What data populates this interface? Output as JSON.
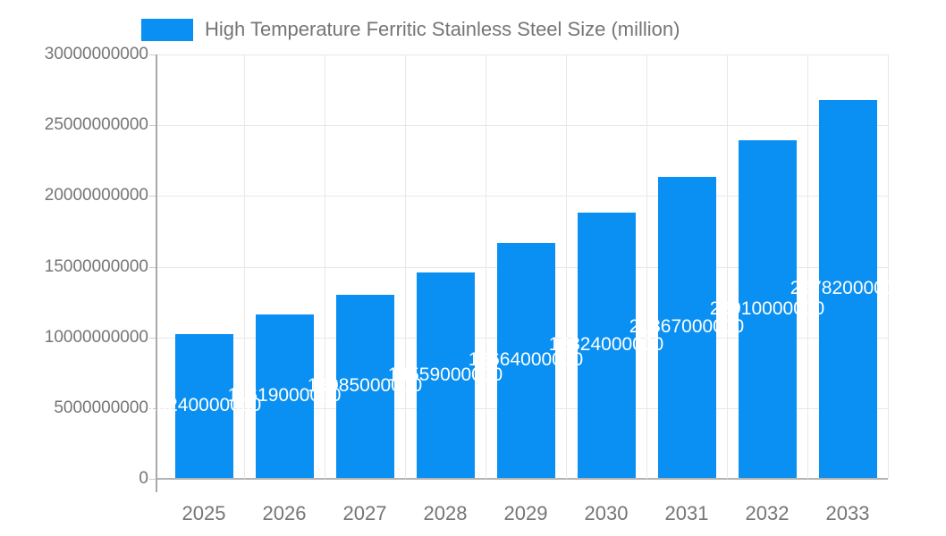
{
  "chart_data": {
    "type": "bar",
    "legend_label": "High Temperature Ferritic Stainless Steel Size (million)",
    "legend_position": "top",
    "categories": [
      "2025",
      "2026",
      "2027",
      "2028",
      "2029",
      "2030",
      "2031",
      "2032",
      "2033"
    ],
    "values": [
      10240000000,
      11619000000,
      12985000000,
      14559000000,
      16664000000,
      18824000000,
      21367000000,
      23910000000,
      26782000000
    ],
    "bar_value_labels": [
      "10240000000",
      "11619000000",
      "12985000000",
      "14559000000",
      "16664000000",
      "18824000000",
      "21367000000",
      "23910000000",
      "26782000000"
    ],
    "xlabel": "",
    "ylabel": "",
    "ylim": [
      0,
      30000000000
    ],
    "grid": true,
    "yticks": [
      {
        "value": 0,
        "label": "0"
      },
      {
        "value": 5000000000,
        "label": "5000000000"
      },
      {
        "value": 10000000000,
        "label": "10000000000"
      },
      {
        "value": 15000000000,
        "label": "15000000000"
      },
      {
        "value": 20000000000,
        "label": "20000000000"
      },
      {
        "value": 25000000000,
        "label": "25000000000"
      },
      {
        "value": 30000000000,
        "label": "30000000000"
      }
    ],
    "colors": {
      "bar": "#0a90f2",
      "label_text": "#ffffff",
      "axis_text": "#757575",
      "grid": "#e8e8e8",
      "axis_line": "#a9a9a9",
      "zero_line": "#b3b3b3"
    }
  }
}
